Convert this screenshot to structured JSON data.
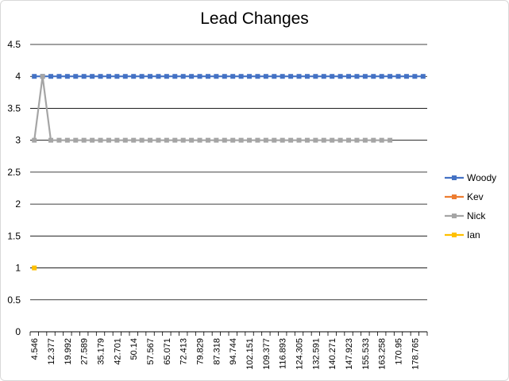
{
  "chart_data": {
    "type": "line",
    "title": "Lead Changes",
    "xlabel": "",
    "ylabel": "",
    "ylim": [
      0,
      4.5
    ],
    "yticks": [
      "0",
      "0.5",
      "1",
      "1.5",
      "2",
      "2.5",
      "3",
      "3.5",
      "4",
      "4.5"
    ],
    "grid": true,
    "legend_position": "right",
    "x_tick_labels": [
      "4.546",
      "12.377",
      "19.992",
      "27.589",
      "35.179",
      "42.701",
      "50.14",
      "57.567",
      "65.071",
      "72.413",
      "79.829",
      "87.318",
      "94.744",
      "102.151",
      "109.377",
      "116.893",
      "124.305",
      "132.591",
      "140.271",
      "147.923",
      "155.533",
      "163.258",
      "170.95",
      "178.765"
    ],
    "series": [
      {
        "name": "Woody",
        "color": "#4472c4",
        "values": [
          4,
          4,
          4,
          4,
          4,
          4,
          4,
          4,
          4,
          4,
          4,
          4,
          4,
          4,
          4,
          4,
          4,
          4,
          4,
          4,
          4,
          4,
          4,
          4,
          4,
          4,
          4,
          4,
          4,
          4,
          4,
          4,
          4,
          4,
          4,
          4,
          4,
          4,
          4,
          4,
          4,
          4,
          4,
          4,
          4,
          4,
          4,
          4
        ]
      },
      {
        "name": "Kev",
        "color": "#ed7d31",
        "values": []
      },
      {
        "name": "Nick",
        "color": "#a5a5a5",
        "values": [
          3,
          4,
          3,
          3,
          3,
          3,
          3,
          3,
          3,
          3,
          3,
          3,
          3,
          3,
          3,
          3,
          3,
          3,
          3,
          3,
          3,
          3,
          3,
          3,
          3,
          3,
          3,
          3,
          3,
          3,
          3,
          3,
          3,
          3,
          3,
          3,
          3,
          3,
          3,
          3,
          3,
          3,
          3,
          3
        ]
      },
      {
        "name": "Ian",
        "color": "#ffc000",
        "values": [
          1
        ]
      }
    ]
  }
}
